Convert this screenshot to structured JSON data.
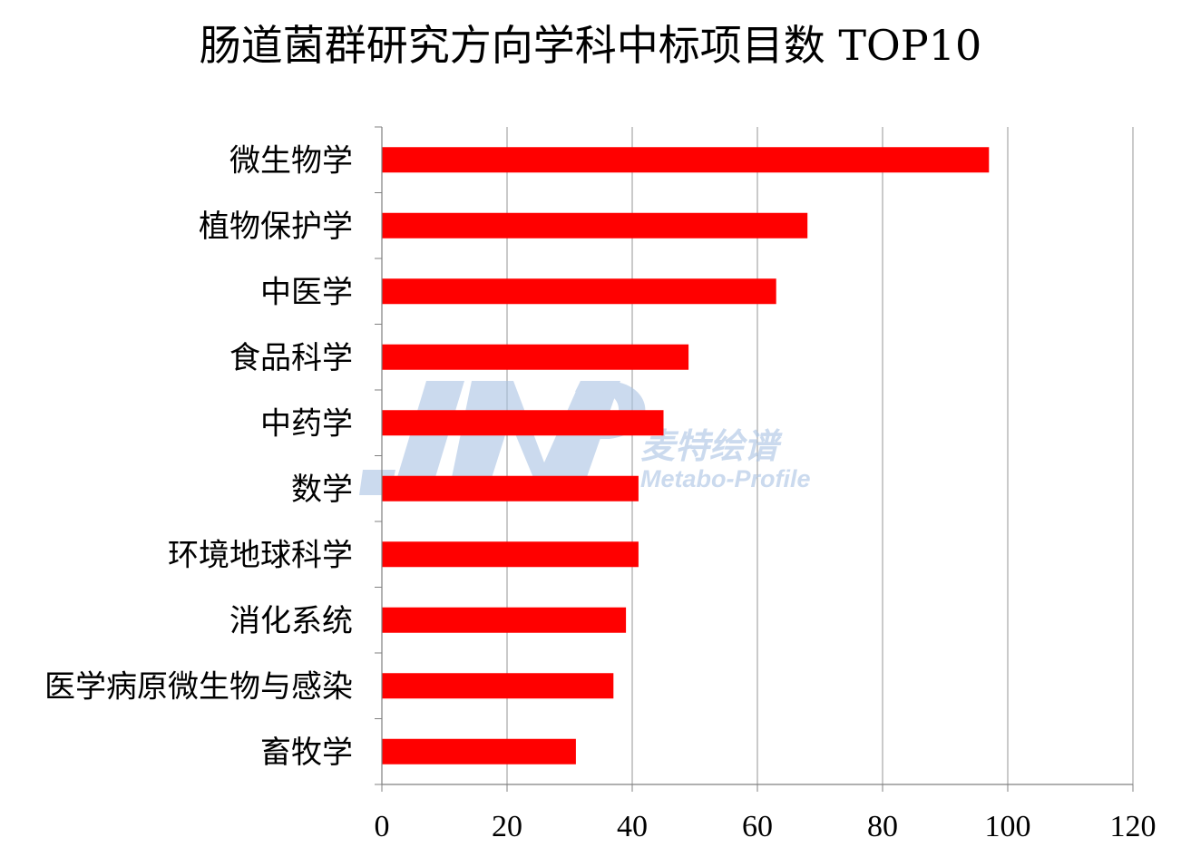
{
  "chart_data": {
    "type": "bar",
    "orientation": "horizontal",
    "title": "肠道菌群研究方向学科中标项目数 TOP10",
    "categories": [
      "微生物学",
      "植物保护学",
      "中医学",
      "食品科学",
      "中药学",
      "数学",
      "环境地球科学",
      "消化系统",
      "医学病原微生物与感染",
      "畜牧学"
    ],
    "values": [
      97,
      68,
      63,
      49,
      45,
      41,
      41,
      39,
      37,
      31
    ],
    "xlim": [
      0,
      120
    ],
    "xticks": [
      "0",
      "20",
      "40",
      "60",
      "80",
      "100",
      "120"
    ],
    "xlabel": "",
    "ylabel": "",
    "grid": true,
    "legend": "none",
    "bar_color": "#ff0000"
  },
  "watermark": {
    "brand_cn": "麦特绘谱",
    "brand_en": "Metabo-Profile",
    "color": "#a9c3e4"
  },
  "colors": {
    "grid": "#969696",
    "axis": "#808080",
    "text": "#000000"
  }
}
